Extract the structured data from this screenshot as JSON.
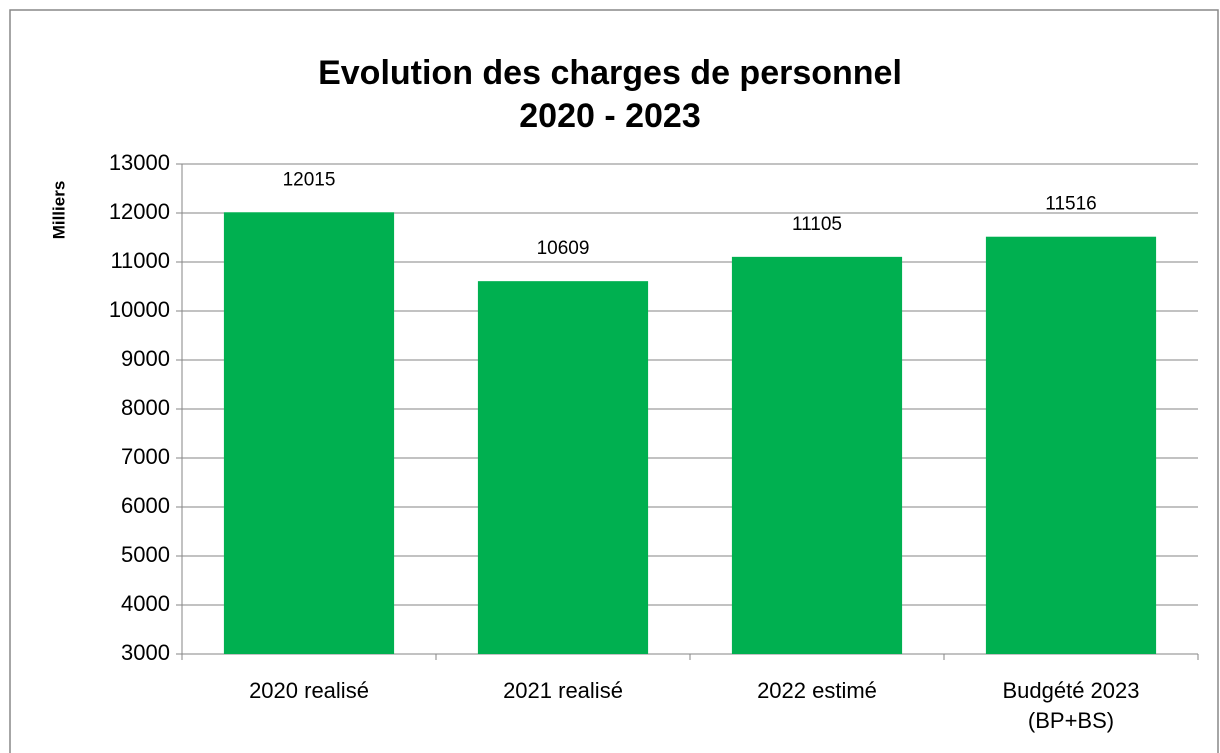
{
  "chart_data": {
    "type": "bar",
    "title": [
      "Evolution des charges de personnel",
      "2020 - 2023"
    ],
    "y_label": "Milliers",
    "categories": [
      "2020 realisé",
      "2021 realisé",
      "2022 estimé",
      "Budgété 2023 (BP+BS)"
    ],
    "values": [
      12015,
      10609,
      11105,
      11516
    ],
    "color": "#00b050",
    "ylim": [
      3000,
      13000
    ],
    "yticks": [
      3000,
      4000,
      5000,
      6000,
      7000,
      8000,
      9000,
      10000,
      11000,
      12000,
      13000
    ],
    "grid": true
  }
}
